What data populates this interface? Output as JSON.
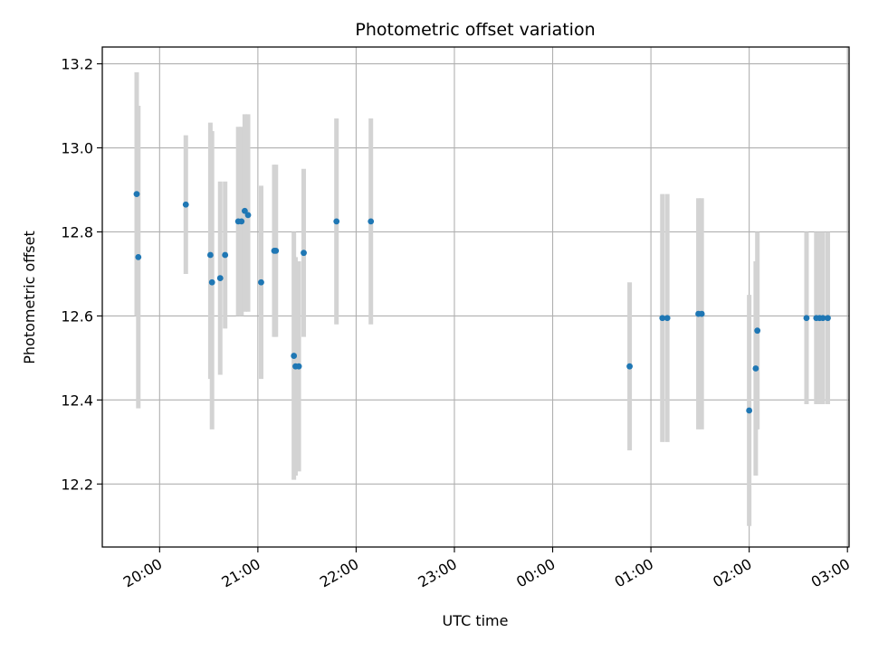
{
  "chart_data": {
    "type": "scatter",
    "title": "Photometric offset variation",
    "xlabel": "UTC time",
    "ylabel": "Photometric offset",
    "grid": true,
    "x_is_time": true,
    "x_ticks": [
      "20:00",
      "21:00",
      "22:00",
      "23:00",
      "00:00",
      "01:00",
      "02:00",
      "03:00"
    ],
    "x_tick_values": [
      0,
      60,
      120,
      180,
      240,
      300,
      360,
      420
    ],
    "xlim": [
      -35,
      421
    ],
    "y_ticks": [
      "12.2",
      "12.4",
      "12.6",
      "12.8",
      "13.0",
      "13.2"
    ],
    "y_tick_values": [
      12.2,
      12.4,
      12.6,
      12.8,
      13.0,
      13.2
    ],
    "ylim": [
      12.05,
      13.24
    ],
    "point_color": "#1f77b4",
    "errorbar_color": "#d3d3d3",
    "points": [
      {
        "time": "19:46",
        "y": 12.89,
        "ylow": 12.6,
        "yhigh": 13.18
      },
      {
        "time": "19:47",
        "y": 12.74,
        "ylow": 12.38,
        "yhigh": 13.1
      },
      {
        "time": "20:16",
        "y": 12.865,
        "ylow": 12.7,
        "yhigh": 13.03
      },
      {
        "time": "20:31",
        "y": 12.745,
        "ylow": 12.45,
        "yhigh": 13.06
      },
      {
        "time": "20:32",
        "y": 12.68,
        "ylow": 12.33,
        "yhigh": 13.04
      },
      {
        "time": "20:37",
        "y": 12.69,
        "ylow": 12.46,
        "yhigh": 12.92
      },
      {
        "time": "20:40",
        "y": 12.745,
        "ylow": 12.57,
        "yhigh": 12.92
      },
      {
        "time": "20:48",
        "y": 12.825,
        "ylow": 12.6,
        "yhigh": 13.05
      },
      {
        "time": "20:50",
        "y": 12.825,
        "ylow": 12.6,
        "yhigh": 13.05
      },
      {
        "time": "20:52",
        "y": 12.85,
        "ylow": 12.61,
        "yhigh": 13.08
      },
      {
        "time": "20:54",
        "y": 12.84,
        "ylow": 12.61,
        "yhigh": 13.08
      },
      {
        "time": "21:02",
        "y": 12.68,
        "ylow": 12.45,
        "yhigh": 12.91
      },
      {
        "time": "21:10",
        "y": 12.755,
        "ylow": 12.55,
        "yhigh": 12.96
      },
      {
        "time": "21:11",
        "y": 12.755,
        "ylow": 12.55,
        "yhigh": 12.96
      },
      {
        "time": "21:22",
        "y": 12.505,
        "ylow": 12.21,
        "yhigh": 12.8
      },
      {
        "time": "21:23",
        "y": 12.48,
        "ylow": 12.22,
        "yhigh": 12.74
      },
      {
        "time": "21:25",
        "y": 12.48,
        "ylow": 12.23,
        "yhigh": 12.73
      },
      {
        "time": "21:28",
        "y": 12.75,
        "ylow": 12.55,
        "yhigh": 12.95
      },
      {
        "time": "21:48",
        "y": 12.825,
        "ylow": 12.58,
        "yhigh": 13.07
      },
      {
        "time": "22:09",
        "y": 12.825,
        "ylow": 12.58,
        "yhigh": 13.07
      },
      {
        "time": "00:47",
        "y": 12.48,
        "ylow": 12.28,
        "yhigh": 12.68
      },
      {
        "time": "01:07",
        "y": 12.595,
        "ylow": 12.3,
        "yhigh": 12.89
      },
      {
        "time": "01:10",
        "y": 12.595,
        "ylow": 12.3,
        "yhigh": 12.89
      },
      {
        "time": "01:29",
        "y": 12.605,
        "ylow": 12.33,
        "yhigh": 12.88
      },
      {
        "time": "01:31",
        "y": 12.605,
        "ylow": 12.33,
        "yhigh": 12.88
      },
      {
        "time": "02:00",
        "y": 12.375,
        "ylow": 12.1,
        "yhigh": 12.65
      },
      {
        "time": "02:04",
        "y": 12.475,
        "ylow": 12.22,
        "yhigh": 12.73
      },
      {
        "time": "02:05",
        "y": 12.565,
        "ylow": 12.33,
        "yhigh": 12.8
      },
      {
        "time": "02:35",
        "y": 12.595,
        "ylow": 12.39,
        "yhigh": 12.8
      },
      {
        "time": "02:41",
        "y": 12.595,
        "ylow": 12.39,
        "yhigh": 12.8
      },
      {
        "time": "02:43",
        "y": 12.595,
        "ylow": 12.39,
        "yhigh": 12.8
      },
      {
        "time": "02:45",
        "y": 12.595,
        "ylow": 12.39,
        "yhigh": 12.8
      },
      {
        "time": "02:48",
        "y": 12.595,
        "ylow": 12.39,
        "yhigh": 12.8
      }
    ]
  }
}
